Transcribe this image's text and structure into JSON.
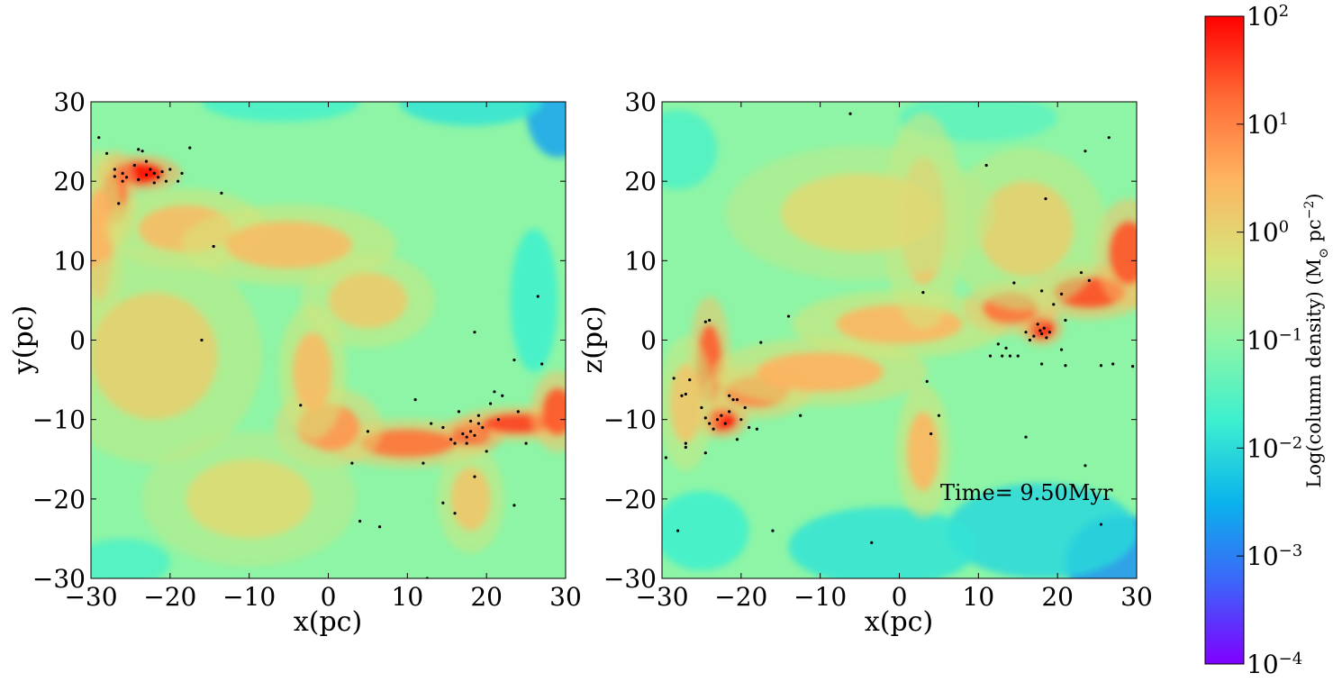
{
  "chart_data": [
    {
      "type": "heatmap",
      "xlabel": "x(pc)",
      "ylabel": "y(pc)",
      "xlim": [
        -30,
        30
      ],
      "ylim": [
        -30,
        30
      ],
      "xticks": [
        "−30",
        "−20",
        "−10",
        "0",
        "10",
        "20",
        "30"
      ],
      "yticks": [
        "30",
        "20",
        "10",
        "0",
        "−10",
        "−20",
        "−30"
      ],
      "background": "#8ef5a6",
      "clumps": [
        {
          "x": -24,
          "y": 21,
          "sx": 3.2,
          "sy": 1.4,
          "value": 1.0
        },
        {
          "x": -27,
          "y": 18,
          "sx": 1.6,
          "sy": 3.5,
          "value": 0.72
        },
        {
          "x": -29,
          "y": 12,
          "sx": 1.8,
          "sy": 7,
          "value": 0.5
        },
        {
          "x": -18,
          "y": 14,
          "sx": 6,
          "sy": 3,
          "value": 0.45
        },
        {
          "x": -5,
          "y": 12,
          "sx": 8,
          "sy": 3,
          "value": 0.45
        },
        {
          "x": 5,
          "y": 5,
          "sx": 5,
          "sy": 3.5,
          "value": 0.38
        },
        {
          "x": 18,
          "y": -12,
          "sx": 2.4,
          "sy": 1.4,
          "value": 1.0
        },
        {
          "x": 24,
          "y": -10.5,
          "sx": 4.5,
          "sy": 1.3,
          "value": 0.85
        },
        {
          "x": 29,
          "y": -9,
          "sx": 2,
          "sy": 3,
          "value": 0.8
        },
        {
          "x": 10,
          "y": -13,
          "sx": 6,
          "sy": 1.8,
          "value": 0.72
        },
        {
          "x": 0,
          "y": -11,
          "sx": 4,
          "sy": 3,
          "value": 0.6
        },
        {
          "x": -2,
          "y": -4,
          "sx": 2.5,
          "sy": 5,
          "value": 0.45
        },
        {
          "x": -22,
          "y": -2,
          "sx": 8,
          "sy": 8,
          "value": 0.35
        },
        {
          "x": -10,
          "y": -20,
          "sx": 8,
          "sy": 5,
          "value": 0.3
        },
        {
          "x": 18,
          "y": -20,
          "sx": 2.5,
          "sy": 4,
          "value": 0.4
        }
      ],
      "voids": [
        {
          "x": 29,
          "y": 29,
          "sx": 4,
          "sy": 6,
          "value": -0.55
        },
        {
          "x": 18,
          "y": 30,
          "sx": 9,
          "sy": 3,
          "value": -0.3
        },
        {
          "x": -6,
          "y": 30,
          "sx": 10,
          "sy": 2.5,
          "value": -0.22
        },
        {
          "x": 26,
          "y": 5,
          "sx": 3,
          "sy": 9,
          "value": -0.25
        },
        {
          "x": -26,
          "y": -28,
          "sx": 6,
          "sy": 3,
          "value": -0.2
        }
      ],
      "stars": [
        {
          "x": -29,
          "y": 25.5
        },
        {
          "x": -28,
          "y": 23.5
        },
        {
          "x": -27,
          "y": 21.5
        },
        {
          "x": -26,
          "y": 21
        },
        {
          "x": -25.5,
          "y": 20.5
        },
        {
          "x": -24.5,
          "y": 22
        },
        {
          "x": -24,
          "y": 24
        },
        {
          "x": -23.5,
          "y": 23.8
        },
        {
          "x": -23,
          "y": 22.5
        },
        {
          "x": -22.5,
          "y": 21.5
        },
        {
          "x": -22,
          "y": 21
        },
        {
          "x": -21.5,
          "y": 20.5
        },
        {
          "x": -21,
          "y": 21.2
        },
        {
          "x": -20.5,
          "y": 20
        },
        {
          "x": -20,
          "y": 21.5
        },
        {
          "x": -19,
          "y": 20
        },
        {
          "x": -18.5,
          "y": 21
        },
        {
          "x": -17.5,
          "y": 24.2
        },
        {
          "x": -26.5,
          "y": 17.2
        },
        {
          "x": -22,
          "y": 19.8
        },
        {
          "x": -24,
          "y": 20.2
        },
        {
          "x": -23,
          "y": 20.8
        },
        {
          "x": -26,
          "y": 20
        },
        {
          "x": -27,
          "y": 20.6
        },
        {
          "x": -13.5,
          "y": 18.5
        },
        {
          "x": -14.5,
          "y": 11.8
        },
        {
          "x": -16,
          "y": 0
        },
        {
          "x": -3.5,
          "y": -8.2
        },
        {
          "x": 5,
          "y": -11.5
        },
        {
          "x": 3,
          "y": -15.5
        },
        {
          "x": 4,
          "y": -22.8
        },
        {
          "x": 6.5,
          "y": -23.5
        },
        {
          "x": 11,
          "y": -7.5
        },
        {
          "x": 12,
          "y": -15.5
        },
        {
          "x": 13,
          "y": -10.5
        },
        {
          "x": 14.5,
          "y": -11
        },
        {
          "x": 15.5,
          "y": -12.5
        },
        {
          "x": 16,
          "y": -13
        },
        {
          "x": 16.5,
          "y": -9
        },
        {
          "x": 17,
          "y": -11.8
        },
        {
          "x": 17.5,
          "y": -12.2
        },
        {
          "x": 18,
          "y": -11.5
        },
        {
          "x": 18.5,
          "y": -12
        },
        {
          "x": 19,
          "y": -10.5
        },
        {
          "x": 19.5,
          "y": -11
        },
        {
          "x": 18,
          "y": -10.2
        },
        {
          "x": 17.5,
          "y": -13
        },
        {
          "x": 19,
          "y": -9.5
        },
        {
          "x": 20,
          "y": -14
        },
        {
          "x": 20.5,
          "y": -8
        },
        {
          "x": 21,
          "y": -6.5
        },
        {
          "x": 22,
          "y": -7
        },
        {
          "x": 21.5,
          "y": -10
        },
        {
          "x": 24,
          "y": -9
        },
        {
          "x": 23.5,
          "y": -2.5
        },
        {
          "x": 18.5,
          "y": 1
        },
        {
          "x": 26.5,
          "y": 5.5
        },
        {
          "x": 27,
          "y": -3
        },
        {
          "x": 25,
          "y": -13
        },
        {
          "x": 18.5,
          "y": -17.2
        },
        {
          "x": 14.5,
          "y": -20.5
        },
        {
          "x": 16,
          "y": -21.8
        },
        {
          "x": 23.5,
          "y": -20.8
        },
        {
          "x": 12.5,
          "y": -30
        }
      ]
    },
    {
      "type": "heatmap",
      "xlabel": "x(pc)",
      "ylabel": "z(pc)",
      "xlim": [
        -30,
        30
      ],
      "ylim": [
        -30,
        30
      ],
      "xticks": [
        "−30",
        "−20",
        "−10",
        "0",
        "10",
        "20",
        "30"
      ],
      "yticks": [
        "30",
        "20",
        "10",
        "0",
        "−10",
        "−20",
        "−30"
      ],
      "annotation": "Time= 9.50Myr",
      "background": "#8ef5a6",
      "clumps": [
        {
          "x": -22.5,
          "y": -10,
          "sx": 2,
          "sy": 1.4,
          "value": 1.0
        },
        {
          "x": -24,
          "y": -3,
          "sx": 1.6,
          "sy": 5,
          "value": 0.78
        },
        {
          "x": -18,
          "y": -6.5,
          "sx": 4,
          "sy": 2,
          "value": 0.65
        },
        {
          "x": -10,
          "y": -4,
          "sx": 8,
          "sy": 2.5,
          "value": 0.5
        },
        {
          "x": 0,
          "y": 2,
          "sx": 8,
          "sy": 2.5,
          "value": 0.48
        },
        {
          "x": 18,
          "y": 1.5,
          "sx": 1.6,
          "sy": 1.3,
          "value": 1.0
        },
        {
          "x": 24,
          "y": 6,
          "sx": 4.5,
          "sy": 2,
          "value": 0.82
        },
        {
          "x": 29,
          "y": 11,
          "sx": 2.5,
          "sy": 4,
          "value": 0.8
        },
        {
          "x": 14,
          "y": 4,
          "sx": 3.5,
          "sy": 2,
          "value": 0.72
        },
        {
          "x": 3,
          "y": 15,
          "sx": 3,
          "sy": 8,
          "value": 0.42
        },
        {
          "x": 16,
          "y": 14,
          "sx": 6,
          "sy": 6,
          "value": 0.35
        },
        {
          "x": 3,
          "y": -14,
          "sx": 2,
          "sy": 5,
          "value": 0.48
        },
        {
          "x": -5,
          "y": 16,
          "sx": 10,
          "sy": 5,
          "value": 0.3
        },
        {
          "x": -27,
          "y": -8,
          "sx": 2,
          "sy": 5,
          "value": 0.4
        }
      ],
      "voids": [
        {
          "x": 28,
          "y": -28,
          "sx": 7,
          "sy": 6,
          "value": -0.6
        },
        {
          "x": 18,
          "y": -24,
          "sx": 12,
          "sy": 6,
          "value": -0.35
        },
        {
          "x": -2,
          "y": -26,
          "sx": 12,
          "sy": 5,
          "value": -0.3
        },
        {
          "x": -25,
          "y": -24,
          "sx": 6,
          "sy": 5,
          "value": -0.25
        },
        {
          "x": -28,
          "y": 24,
          "sx": 5,
          "sy": 5,
          "value": -0.2
        },
        {
          "x": 10,
          "y": 28,
          "sx": 10,
          "sy": 3,
          "value": -0.15
        }
      ],
      "stars": [
        {
          "x": -6.2,
          "y": 28.5
        },
        {
          "x": 11,
          "y": 22
        },
        {
          "x": 18.5,
          "y": 17.8
        },
        {
          "x": 23.5,
          "y": 23.8
        },
        {
          "x": 26.5,
          "y": 25.5
        },
        {
          "x": -24,
          "y": 2.5
        },
        {
          "x": -24.5,
          "y": 2.3
        },
        {
          "x": -14,
          "y": 3
        },
        {
          "x": 3,
          "y": 6
        },
        {
          "x": -17.5,
          "y": -0.3
        },
        {
          "x": -28.5,
          "y": -4.8
        },
        {
          "x": -27.5,
          "y": -7
        },
        {
          "x": -27,
          "y": -6.8
        },
        {
          "x": -26.5,
          "y": -5
        },
        {
          "x": -25,
          "y": -8.5
        },
        {
          "x": -24.5,
          "y": -9.8
        },
        {
          "x": -24,
          "y": -10.5
        },
        {
          "x": -23.5,
          "y": -11.2
        },
        {
          "x": -23,
          "y": -10
        },
        {
          "x": -22.5,
          "y": -9.5
        },
        {
          "x": -22,
          "y": -10.5
        },
        {
          "x": -21.5,
          "y": -9
        },
        {
          "x": -21,
          "y": -7.5
        },
        {
          "x": -21.5,
          "y": -7
        },
        {
          "x": -20.5,
          "y": -7.5
        },
        {
          "x": -20,
          "y": -10
        },
        {
          "x": -19.5,
          "y": -8.5
        },
        {
          "x": -19,
          "y": -11
        },
        {
          "x": -18,
          "y": -11.2
        },
        {
          "x": -20.5,
          "y": -12.5
        },
        {
          "x": -24.5,
          "y": -14.2
        },
        {
          "x": -27,
          "y": -13
        },
        {
          "x": -27,
          "y": -13.5
        },
        {
          "x": -29.5,
          "y": -14.8
        },
        {
          "x": -28,
          "y": -24
        },
        {
          "x": -16,
          "y": -24
        },
        {
          "x": -12.5,
          "y": -9.5
        },
        {
          "x": -3.5,
          "y": -25.5
        },
        {
          "x": 3.5,
          "y": -5.2
        },
        {
          "x": 4,
          "y": -11.8
        },
        {
          "x": 5,
          "y": -9.5
        },
        {
          "x": 11.5,
          "y": -2
        },
        {
          "x": 12.5,
          "y": -0.5
        },
        {
          "x": 13.5,
          "y": -1
        },
        {
          "x": 14,
          "y": -2
        },
        {
          "x": 14.5,
          "y": 7.2
        },
        {
          "x": 15,
          "y": -2
        },
        {
          "x": 16,
          "y": 1
        },
        {
          "x": 16.5,
          "y": 0
        },
        {
          "x": 17,
          "y": 0.5
        },
        {
          "x": 17.5,
          "y": 2
        },
        {
          "x": 17.8,
          "y": 1.2
        },
        {
          "x": 18,
          "y": 0.8
        },
        {
          "x": 18.3,
          "y": 1.5
        },
        {
          "x": 18.6,
          "y": 0.3
        },
        {
          "x": 19,
          "y": 1
        },
        {
          "x": 18,
          "y": 6.2
        },
        {
          "x": 19.5,
          "y": 4.5
        },
        {
          "x": 20.5,
          "y": 5.8
        },
        {
          "x": 21,
          "y": 2.5
        },
        {
          "x": 18,
          "y": -3
        },
        {
          "x": 20.5,
          "y": -1.2
        },
        {
          "x": 21,
          "y": -3.2
        },
        {
          "x": 23,
          "y": 8.5
        },
        {
          "x": 24,
          "y": 7.5
        },
        {
          "x": 25.5,
          "y": -3.2
        },
        {
          "x": 27,
          "y": -3
        },
        {
          "x": 29.5,
          "y": -3.3
        },
        {
          "x": 16,
          "y": -12.2
        },
        {
          "x": 23.5,
          "y": -15.8
        },
        {
          "x": 25.5,
          "y": -23.2
        },
        {
          "x": 13,
          "y": -2
        }
      ]
    }
  ],
  "colorbar": {
    "label": "Log(column density) (M",
    "label_sub": "⊙",
    "label_tail": " pc",
    "label_sup": "−2",
    "label_close": ")",
    "ticks": [
      {
        "base": "10",
        "exp": "2"
      },
      {
        "base": "10",
        "exp": "1"
      },
      {
        "base": "10",
        "exp": "0"
      },
      {
        "base": "10",
        "exp": "−1"
      },
      {
        "base": "10",
        "exp": "−2"
      },
      {
        "base": "10",
        "exp": "−3"
      },
      {
        "base": "10",
        "exp": "−4"
      }
    ],
    "colors": [
      "#7f00ff",
      "#3d64f9",
      "#0ab3ec",
      "#3cf0cf",
      "#8ef5a6",
      "#d6e47a",
      "#ffb360",
      "#ff6a35",
      "#ff0000"
    ]
  }
}
